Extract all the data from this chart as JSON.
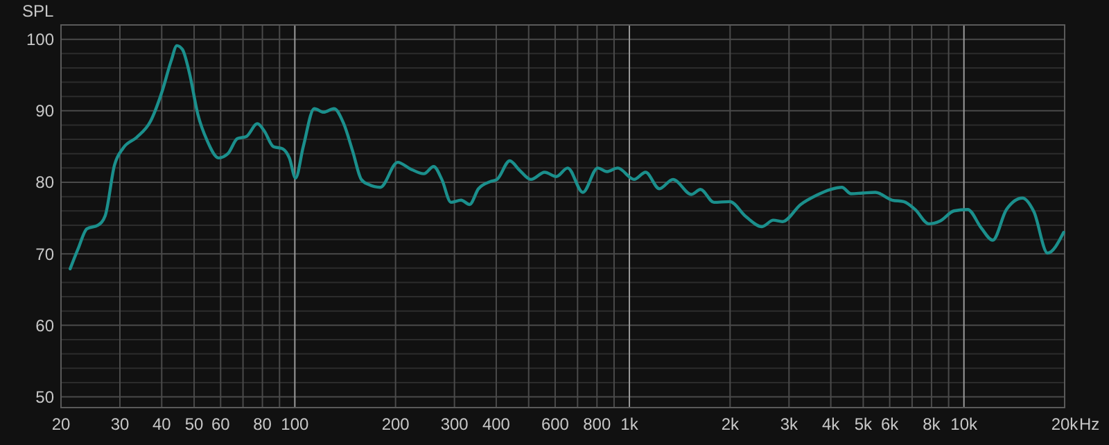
{
  "chart_data": {
    "type": "line",
    "ylabel": "SPL",
    "log": "x",
    "grid": true,
    "marker": "none",
    "line_style": "solid",
    "xlim": [
      20,
      20000
    ],
    "ylim": [
      48.5,
      102
    ],
    "xticks": [
      20,
      30,
      40,
      50,
      60,
      {
        "value": 70,
        "label": null
      },
      80,
      {
        "value": 90,
        "label": null
      },
      100,
      200,
      300,
      400,
      {
        "value": 500,
        "label": null
      },
      600,
      {
        "value": 700,
        "label": null
      },
      800,
      {
        "value": 900,
        "label": null
      },
      {
        "value": 1000,
        "label": "1k"
      },
      {
        "value": 2000,
        "label": "2k"
      },
      {
        "value": 3000,
        "label": "3k"
      },
      {
        "value": 4000,
        "label": "4k"
      },
      {
        "value": 5000,
        "label": "5k"
      },
      {
        "value": 6000,
        "label": "6k"
      },
      {
        "value": 7000,
        "label": null
      },
      {
        "value": 8000,
        "label": "8k"
      },
      {
        "value": 9000,
        "label": null
      },
      {
        "value": 10000,
        "label": "10k"
      },
      {
        "value": 20000,
        "label": "20k"
      }
    ],
    "xlabel": "Hz",
    "yticks": [
      50,
      {
        "value": 52,
        "label": null
      },
      {
        "value": 54,
        "label": null
      },
      {
        "value": 56,
        "label": null
      },
      {
        "value": 58,
        "label": null
      },
      60,
      {
        "value": 62,
        "label": null
      },
      {
        "value": 64,
        "label": null
      },
      {
        "value": 66,
        "label": null
      },
      {
        "value": 68,
        "label": null
      },
      70,
      {
        "value": 72,
        "label": null
      },
      {
        "value": 74,
        "label": null
      },
      {
        "value": 76,
        "label": null
      },
      {
        "value": 78,
        "label": null
      },
      80,
      {
        "value": 82,
        "label": null
      },
      {
        "value": 84,
        "label": null
      },
      {
        "value": 86,
        "label": null
      },
      {
        "value": 88,
        "label": null
      },
      90,
      {
        "value": 92,
        "label": null
      },
      {
        "value": 94,
        "label": null
      },
      {
        "value": 96,
        "label": null
      },
      {
        "value": 98,
        "label": null
      },
      100
    ],
    "series": [
      {
        "color": "#1b8f8c",
        "x": [
          21.3,
          22.5,
          23.9,
          25.8,
          27.1,
          28.9,
          30.7,
          33.7,
          37.0,
          40.1,
          42.7,
          44.4,
          46.1,
          48.4,
          51.3,
          54.6,
          59.2,
          63.1,
          67.3,
          71.6,
          77.3,
          81.0,
          86.2,
          91.8,
          96.3,
          100.5,
          106,
          114.3,
          122,
          131,
          140,
          149,
          158,
          166,
          180,
          203,
          221,
          243,
          260,
          275,
          293,
          314,
          333,
          354,
          384,
          402,
          439,
          469,
          508,
          558,
          605,
          654,
          726,
          804,
          856,
          923,
          1033,
          1118,
          1229,
          1350,
          1533,
          1632,
          1789,
          1996,
          2230,
          2490,
          2693,
          2869,
          3253,
          3633,
          3992,
          4317,
          4600,
          4975,
          5433,
          6107,
          6606,
          7145,
          7852,
          8496,
          9338,
          10260,
          11270,
          12190,
          13400,
          14960,
          16180,
          17790,
          19860
        ],
        "values": [
          67.9,
          70.7,
          73.5,
          74.0,
          75.3,
          82.4,
          84.8,
          86.3,
          88.5,
          92.7,
          97.0,
          99.1,
          98.6,
          95.3,
          89.5,
          85.9,
          83.4,
          84.0,
          86.1,
          86.4,
          88.2,
          87.2,
          85.0,
          84.7,
          83.4,
          80.6,
          85.0,
          90.3,
          89.8,
          90.3,
          88.2,
          84.3,
          80.4,
          79.7,
          79.3,
          82.8,
          81.9,
          81.2,
          82.2,
          80.4,
          77.2,
          77.5,
          76.9,
          79.1,
          80.1,
          80.4,
          83.0,
          81.7,
          80.4,
          81.4,
          80.8,
          82.0,
          78.6,
          82.0,
          81.5,
          82.0,
          80.4,
          81.4,
          79.1,
          80.4,
          78.3,
          79.0,
          77.2,
          77.3,
          75.2,
          73.8,
          74.7,
          74.5,
          76.9,
          78.2,
          79.0,
          79.3,
          78.4,
          78.5,
          78.6,
          77.5,
          77.3,
          76.2,
          74.2,
          74.6,
          76.0,
          76.2,
          73.6,
          71.9,
          76.2,
          77.8,
          75.9,
          70.1,
          73.0
        ]
      }
    ]
  }
}
